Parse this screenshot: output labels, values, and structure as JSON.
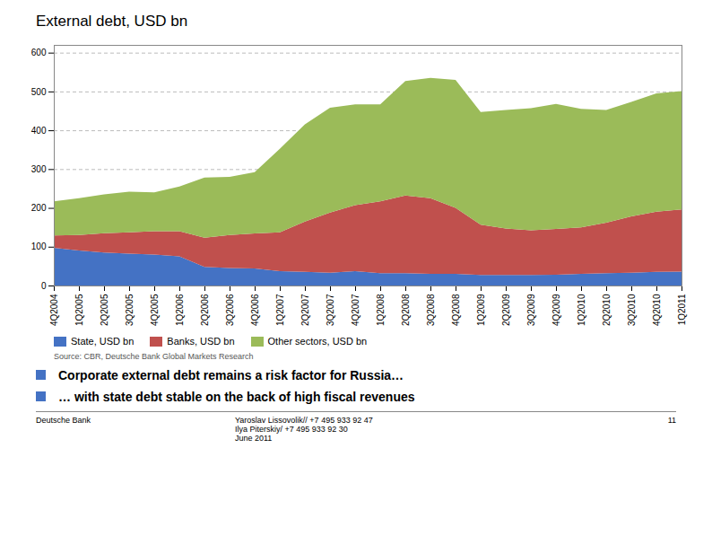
{
  "chart_data": {
    "type": "area",
    "title": "External debt, USD bn",
    "categories": [
      "4Q2004",
      "1Q2005",
      "2Q2005",
      "3Q2005",
      "4Q2005",
      "1Q2006",
      "2Q2006",
      "3Q2006",
      "4Q2006",
      "1Q2007",
      "2Q2007",
      "3Q2007",
      "4Q2007",
      "1Q2008",
      "2Q2008",
      "3Q2008",
      "4Q2008",
      "1Q2009",
      "2Q2009",
      "3Q2009",
      "4Q2009",
      "1Q2010",
      "2Q2010",
      "3Q2010",
      "4Q2010",
      "1Q2011"
    ],
    "series": [
      {
        "name": "State, USD bn",
        "color": "#4472C4",
        "values": [
          97,
          90,
          85,
          82,
          80,
          75,
          48,
          45,
          44,
          37,
          35,
          33,
          37,
          32,
          32,
          30,
          30,
          27,
          27,
          27,
          28,
          30,
          32,
          33,
          35,
          36
        ]
      },
      {
        "name": "Banks, USD bn",
        "color": "#C0504D",
        "values": [
          32,
          40,
          50,
          55,
          60,
          65,
          75,
          85,
          90,
          100,
          130,
          155,
          170,
          185,
          200,
          195,
          170,
          130,
          120,
          115,
          118,
          120,
          130,
          145,
          155,
          160
        ]
      },
      {
        "name": "Other sectors, USD bn",
        "color": "#9BBB59",
        "values": [
          88,
          95,
          100,
          105,
          100,
          115,
          155,
          150,
          158,
          215,
          250,
          270,
          260,
          250,
          295,
          310,
          330,
          290,
          305,
          315,
          322,
          305,
          290,
          295,
          305,
          305
        ]
      }
    ],
    "stacked": true,
    "ylim": [
      0,
      620
    ],
    "yticks": [
      0,
      100,
      200,
      300,
      400,
      500,
      600
    ],
    "grid": true,
    "legend": "bottom",
    "annotations": {
      "source": "Source: CBR, Deutsche Bank Global Markets Research",
      "bullets": [
        "Corporate external debt remains a risk factor for Russia…",
        "… with state debt stable on the back of high fiscal revenues"
      ],
      "footer": [
        "Deutsche Bank",
        "Yaroslav Lissovolik// +7 495 933 92 47\nIlya Piterskiy/    +7 495 933 92 30\nJune 2011",
        "11"
      ]
    }
  }
}
